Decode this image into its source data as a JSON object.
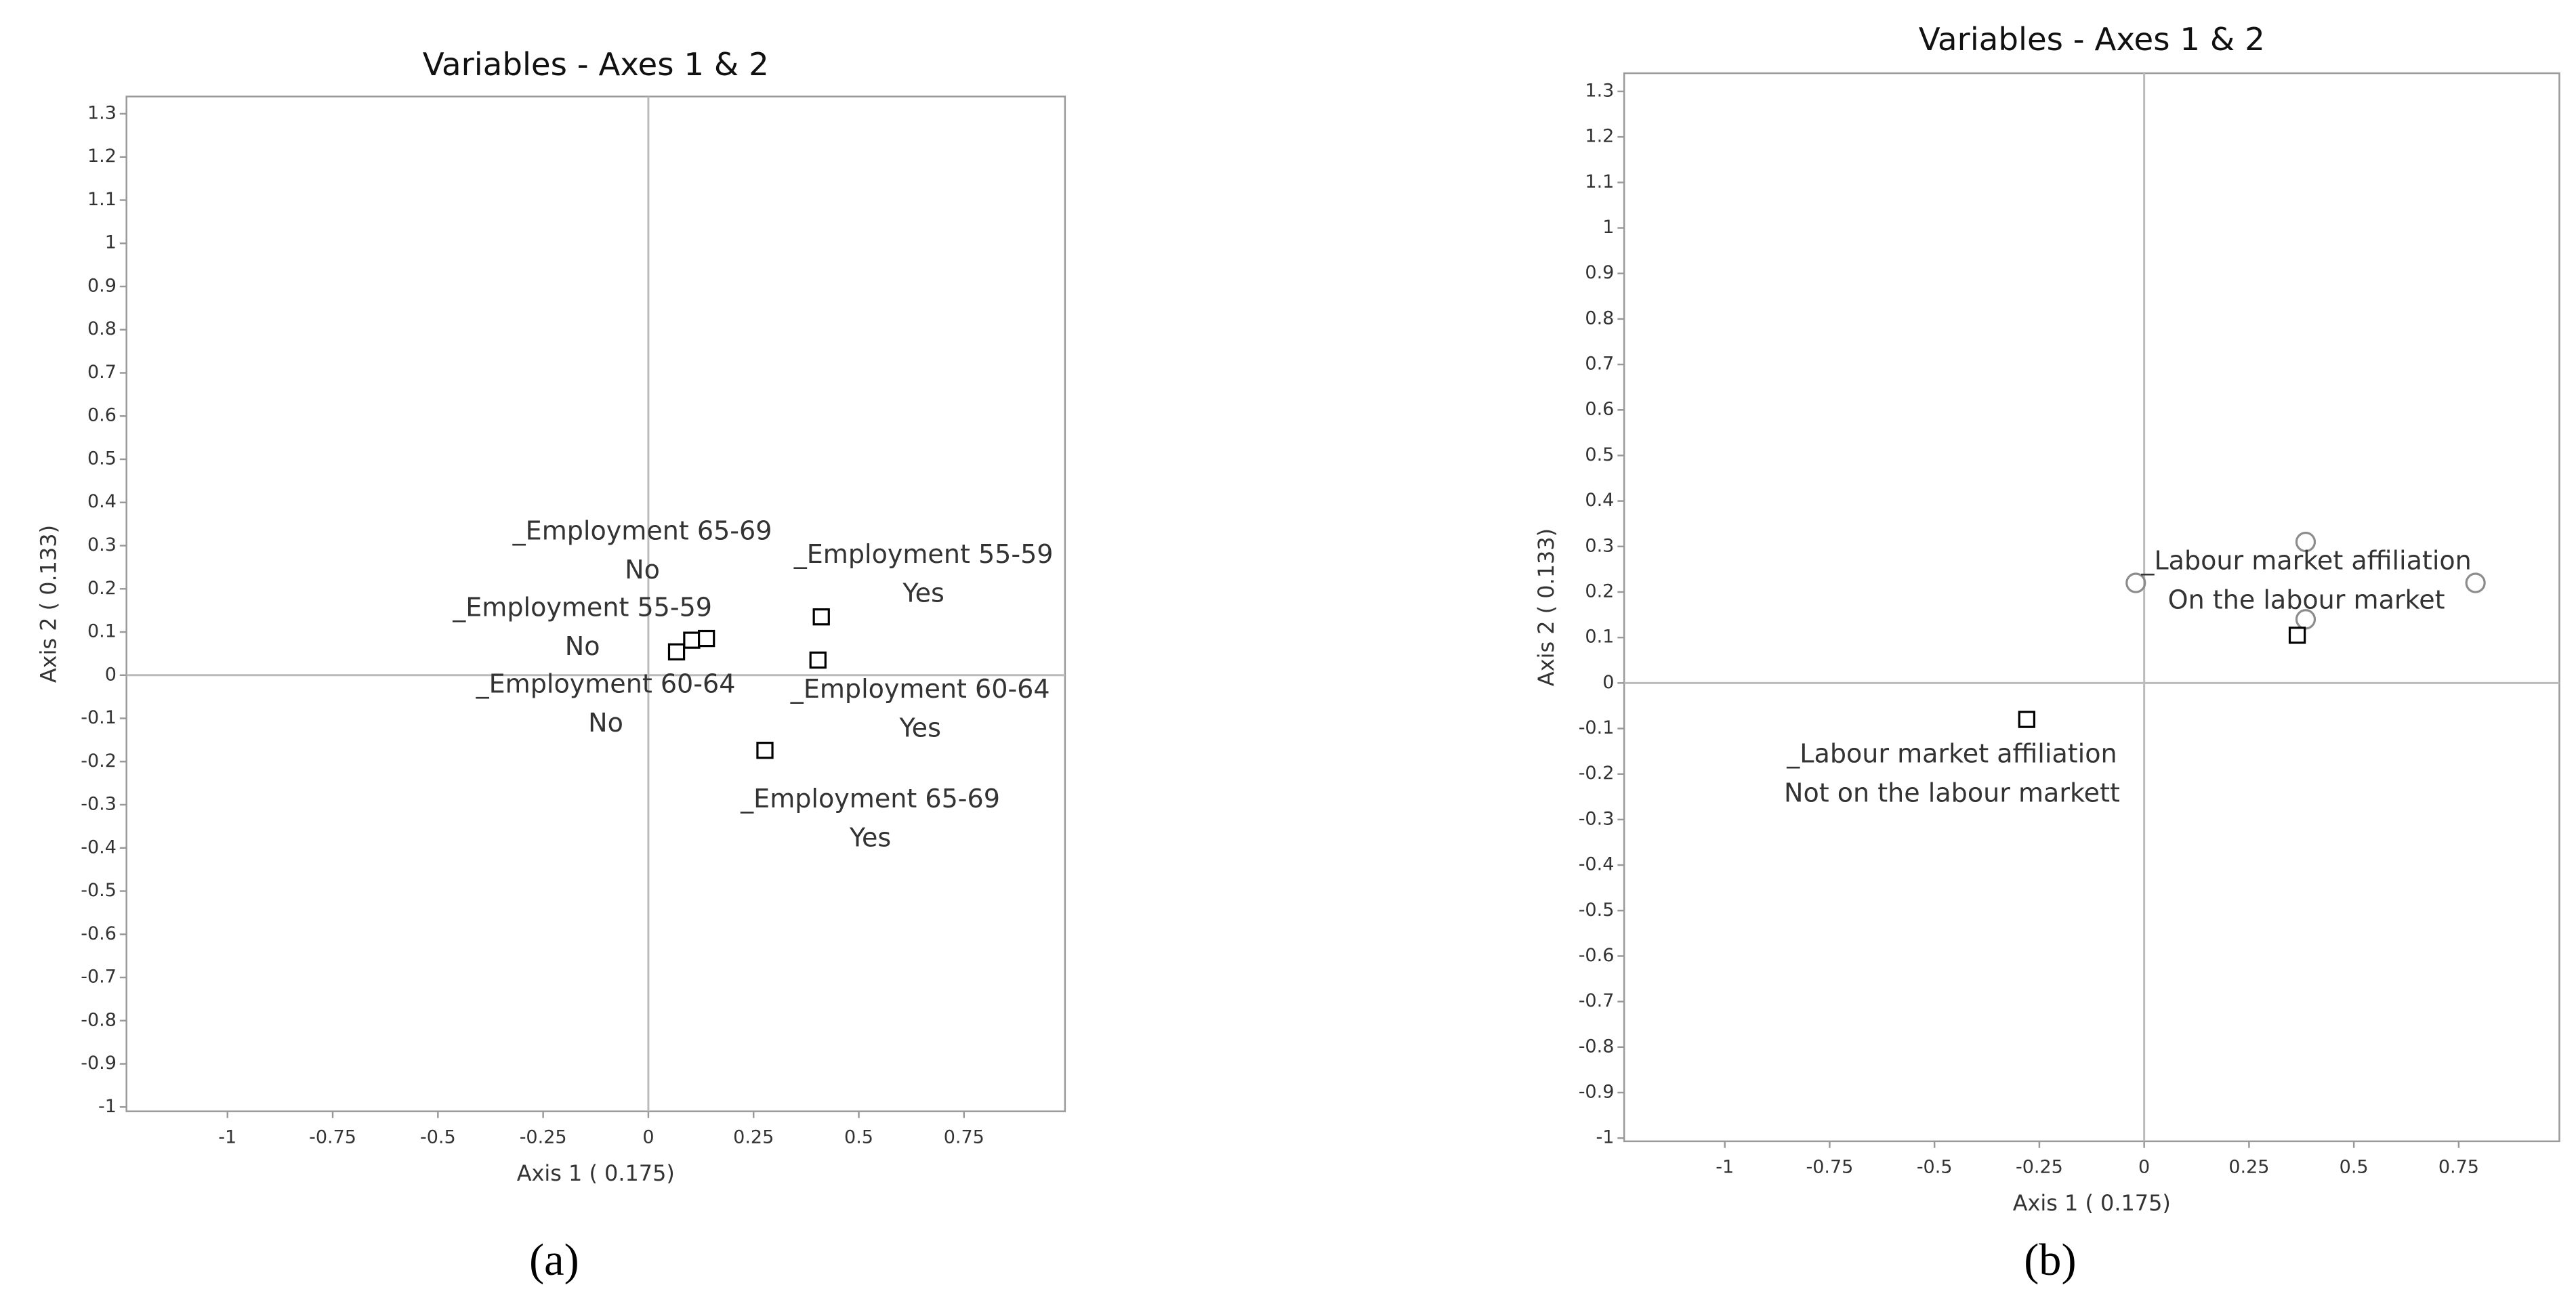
{
  "chart_data": [
    {
      "type": "scatter",
      "title": "Variables - Axes 1 & 2",
      "x_label": "Axis 1 ( 0.175)",
      "y_label": "Axis 2 ( 0.133)",
      "caption": "(a)",
      "xlim": [
        -1.24,
        0.99
      ],
      "ylim": [
        -1.01,
        1.34
      ],
      "xticks": [
        -1,
        -0.75,
        -0.5,
        -0.25,
        0,
        0.25,
        0.5,
        0.75
      ],
      "yticks": [
        1.3,
        1.2,
        1.1,
        1,
        0.9,
        0.8,
        0.7,
        0.6,
        0.5,
        0.4,
        0.3,
        0.2,
        0.1,
        0,
        -0.1,
        -0.2,
        -0.3,
        -0.4,
        -0.5,
        -0.6,
        -0.7,
        -0.8,
        -0.9,
        -1
      ],
      "series": [
        {
          "marker": "square",
          "color": "#000000",
          "x": [
            0.067,
            0.103,
            0.138,
            0.411,
            0.403,
            0.277
          ],
          "values": [
            0.054,
            0.081,
            0.085,
            0.135,
            0.035,
            -0.174
          ]
        }
      ],
      "annotations": [
        {
          "lines": [
            "_Employment 65-69",
            "No"
          ]
        },
        {
          "lines": [
            "_Employment 55-59",
            "No"
          ]
        },
        {
          "lines": [
            "_Employment 60-64",
            "No"
          ]
        },
        {
          "lines": [
            "_Employment 55-59",
            "Yes"
          ]
        },
        {
          "lines": [
            "_Employment 60-64",
            "Yes"
          ]
        },
        {
          "lines": [
            "_Employment 65-69",
            "Yes"
          ]
        }
      ]
    },
    {
      "type": "scatter",
      "title": "Variables - Axes 1 & 2",
      "x_label": "Axis 1 ( 0.175)",
      "y_label": "Axis 2 ( 0.133)",
      "caption": "(b)",
      "xlim": [
        -1.24,
        0.99
      ],
      "ylim": [
        -1.007,
        1.34
      ],
      "xticks": [
        -1,
        -0.75,
        -0.5,
        -0.25,
        0,
        0.25,
        0.5,
        0.75
      ],
      "yticks": [
        1.3,
        1.2,
        1.1,
        1,
        0.9,
        0.8,
        0.7,
        0.6,
        0.5,
        0.4,
        0.3,
        0.2,
        0.1,
        0,
        -0.1,
        -0.2,
        -0.3,
        -0.4,
        -0.5,
        -0.6,
        -0.7,
        -0.8,
        -0.9,
        -1
      ],
      "series": [
        {
          "marker": "circle",
          "color": "#8c8c8c",
          "x": [
            -0.02,
            0.385,
            0.79,
            0.385
          ],
          "values": [
            0.22,
            0.31,
            0.22,
            0.14
          ]
        },
        {
          "marker": "square",
          "color": "#000000",
          "x": [
            0.365,
            -0.28
          ],
          "values": [
            0.105,
            -0.08
          ]
        }
      ],
      "annotations": [
        {
          "lines": [
            "_Labour market affiliation",
            "On the labour market"
          ]
        },
        {
          "lines": [
            "_Labour market affiliation",
            "Not on the labour markett"
          ]
        }
      ]
    }
  ]
}
